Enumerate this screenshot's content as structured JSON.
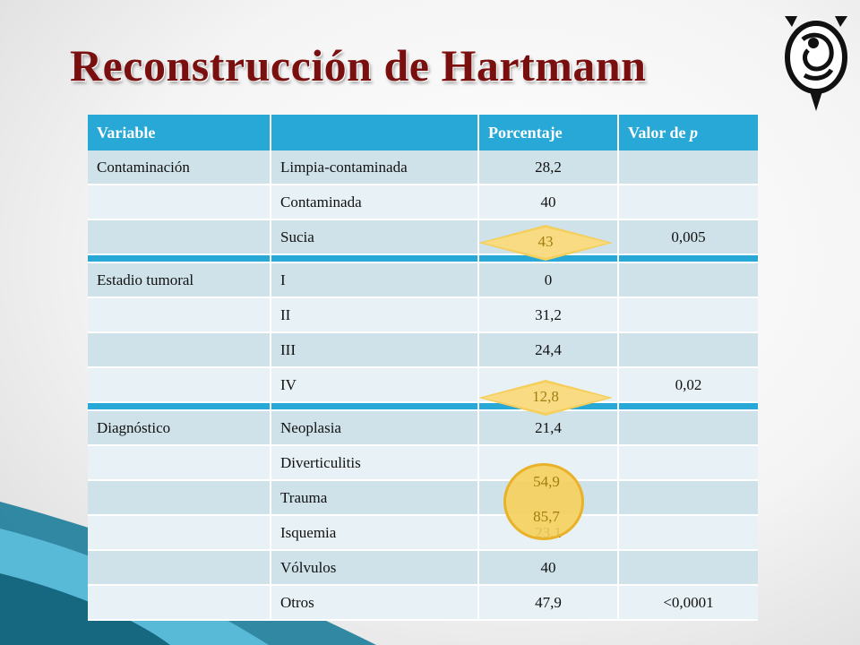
{
  "title": "Reconstrucción de Hartmann",
  "logo_icon": "hartmann-emblem-icon",
  "table": {
    "headers": [
      "Variable",
      "",
      "Porcentaje",
      "Valor de p"
    ],
    "header_p_italic": "p",
    "rows": [
      {
        "var": "Contaminación",
        "sub": "Limpia-contaminada",
        "pct": "28,2",
        "pv": ""
      },
      {
        "var": "",
        "sub": "Contaminada",
        "pct": "40",
        "pv": ""
      },
      {
        "var": "",
        "sub": "Sucia",
        "pct": "43",
        "pv": "0,005"
      },
      {
        "var": "Estadio tumoral",
        "sub": "I",
        "pct": "0",
        "pv": ""
      },
      {
        "var": "",
        "sub": "II",
        "pct": "31,2",
        "pv": ""
      },
      {
        "var": "",
        "sub": "III",
        "pct": "24,4",
        "pv": ""
      },
      {
        "var": "",
        "sub": "IV",
        "pct": "12,8",
        "pv": "0,02"
      },
      {
        "var": "Diagnóstico",
        "sub": "Neoplasia",
        "pct": "21,4",
        "pv": ""
      },
      {
        "var": "",
        "sub": "Diverticulitis",
        "pct": "54,9",
        "pv": ""
      },
      {
        "var": "",
        "sub": "Trauma",
        "pct": "85,7",
        "pv": ""
      },
      {
        "var": "",
        "sub": "Isquemia",
        "pct": "23,1",
        "pv": ""
      },
      {
        "var": "",
        "sub": "Vólvulos",
        "pct": "40",
        "pv": ""
      },
      {
        "var": "",
        "sub": "Otros",
        "pct": "47,9",
        "pv": "<0,0001"
      }
    ]
  },
  "highlights": [
    "43",
    "12,8",
    "54,9",
    "85,7"
  ],
  "colors": {
    "header": "#27a8d6",
    "title": "#7a0f0f",
    "highlight": "#f5cf5c"
  }
}
